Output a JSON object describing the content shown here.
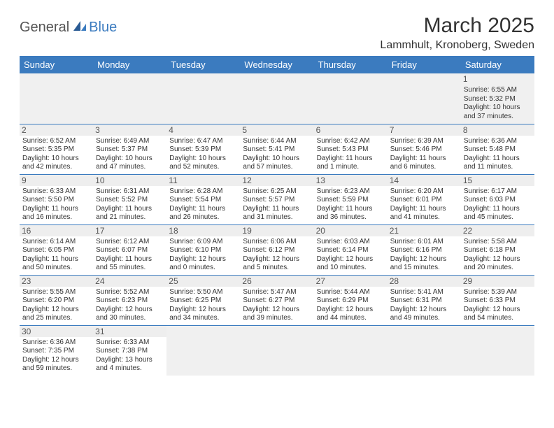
{
  "brand": {
    "part1": "General",
    "part2": "Blue"
  },
  "title": "March 2025",
  "location": "Lammhult, Kronoberg, Sweden",
  "colors": {
    "header_bg": "#3b7bbf",
    "header_fg": "#ffffff",
    "border": "#3b7bbf",
    "daynum_bg": "#eeeeee"
  },
  "day_headers": [
    "Sunday",
    "Monday",
    "Tuesday",
    "Wednesday",
    "Thursday",
    "Friday",
    "Saturday"
  ],
  "weeks": [
    [
      {
        "n": "",
        "sr": "",
        "ss": "",
        "dl": ""
      },
      {
        "n": "",
        "sr": "",
        "ss": "",
        "dl": ""
      },
      {
        "n": "",
        "sr": "",
        "ss": "",
        "dl": ""
      },
      {
        "n": "",
        "sr": "",
        "ss": "",
        "dl": ""
      },
      {
        "n": "",
        "sr": "",
        "ss": "",
        "dl": ""
      },
      {
        "n": "",
        "sr": "",
        "ss": "",
        "dl": ""
      },
      {
        "n": "1",
        "sr": "Sunrise: 6:55 AM",
        "ss": "Sunset: 5:32 PM",
        "dl": "Daylight: 10 hours and 37 minutes."
      }
    ],
    [
      {
        "n": "2",
        "sr": "Sunrise: 6:52 AM",
        "ss": "Sunset: 5:35 PM",
        "dl": "Daylight: 10 hours and 42 minutes."
      },
      {
        "n": "3",
        "sr": "Sunrise: 6:49 AM",
        "ss": "Sunset: 5:37 PM",
        "dl": "Daylight: 10 hours and 47 minutes."
      },
      {
        "n": "4",
        "sr": "Sunrise: 6:47 AM",
        "ss": "Sunset: 5:39 PM",
        "dl": "Daylight: 10 hours and 52 minutes."
      },
      {
        "n": "5",
        "sr": "Sunrise: 6:44 AM",
        "ss": "Sunset: 5:41 PM",
        "dl": "Daylight: 10 hours and 57 minutes."
      },
      {
        "n": "6",
        "sr": "Sunrise: 6:42 AM",
        "ss": "Sunset: 5:43 PM",
        "dl": "Daylight: 11 hours and 1 minute."
      },
      {
        "n": "7",
        "sr": "Sunrise: 6:39 AM",
        "ss": "Sunset: 5:46 PM",
        "dl": "Daylight: 11 hours and 6 minutes."
      },
      {
        "n": "8",
        "sr": "Sunrise: 6:36 AM",
        "ss": "Sunset: 5:48 PM",
        "dl": "Daylight: 11 hours and 11 minutes."
      }
    ],
    [
      {
        "n": "9",
        "sr": "Sunrise: 6:33 AM",
        "ss": "Sunset: 5:50 PM",
        "dl": "Daylight: 11 hours and 16 minutes."
      },
      {
        "n": "10",
        "sr": "Sunrise: 6:31 AM",
        "ss": "Sunset: 5:52 PM",
        "dl": "Daylight: 11 hours and 21 minutes."
      },
      {
        "n": "11",
        "sr": "Sunrise: 6:28 AM",
        "ss": "Sunset: 5:54 PM",
        "dl": "Daylight: 11 hours and 26 minutes."
      },
      {
        "n": "12",
        "sr": "Sunrise: 6:25 AM",
        "ss": "Sunset: 5:57 PM",
        "dl": "Daylight: 11 hours and 31 minutes."
      },
      {
        "n": "13",
        "sr": "Sunrise: 6:23 AM",
        "ss": "Sunset: 5:59 PM",
        "dl": "Daylight: 11 hours and 36 minutes."
      },
      {
        "n": "14",
        "sr": "Sunrise: 6:20 AM",
        "ss": "Sunset: 6:01 PM",
        "dl": "Daylight: 11 hours and 41 minutes."
      },
      {
        "n": "15",
        "sr": "Sunrise: 6:17 AM",
        "ss": "Sunset: 6:03 PM",
        "dl": "Daylight: 11 hours and 45 minutes."
      }
    ],
    [
      {
        "n": "16",
        "sr": "Sunrise: 6:14 AM",
        "ss": "Sunset: 6:05 PM",
        "dl": "Daylight: 11 hours and 50 minutes."
      },
      {
        "n": "17",
        "sr": "Sunrise: 6:12 AM",
        "ss": "Sunset: 6:07 PM",
        "dl": "Daylight: 11 hours and 55 minutes."
      },
      {
        "n": "18",
        "sr": "Sunrise: 6:09 AM",
        "ss": "Sunset: 6:10 PM",
        "dl": "Daylight: 12 hours and 0 minutes."
      },
      {
        "n": "19",
        "sr": "Sunrise: 6:06 AM",
        "ss": "Sunset: 6:12 PM",
        "dl": "Daylight: 12 hours and 5 minutes."
      },
      {
        "n": "20",
        "sr": "Sunrise: 6:03 AM",
        "ss": "Sunset: 6:14 PM",
        "dl": "Daylight: 12 hours and 10 minutes."
      },
      {
        "n": "21",
        "sr": "Sunrise: 6:01 AM",
        "ss": "Sunset: 6:16 PM",
        "dl": "Daylight: 12 hours and 15 minutes."
      },
      {
        "n": "22",
        "sr": "Sunrise: 5:58 AM",
        "ss": "Sunset: 6:18 PM",
        "dl": "Daylight: 12 hours and 20 minutes."
      }
    ],
    [
      {
        "n": "23",
        "sr": "Sunrise: 5:55 AM",
        "ss": "Sunset: 6:20 PM",
        "dl": "Daylight: 12 hours and 25 minutes."
      },
      {
        "n": "24",
        "sr": "Sunrise: 5:52 AM",
        "ss": "Sunset: 6:23 PM",
        "dl": "Daylight: 12 hours and 30 minutes."
      },
      {
        "n": "25",
        "sr": "Sunrise: 5:50 AM",
        "ss": "Sunset: 6:25 PM",
        "dl": "Daylight: 12 hours and 34 minutes."
      },
      {
        "n": "26",
        "sr": "Sunrise: 5:47 AM",
        "ss": "Sunset: 6:27 PM",
        "dl": "Daylight: 12 hours and 39 minutes."
      },
      {
        "n": "27",
        "sr": "Sunrise: 5:44 AM",
        "ss": "Sunset: 6:29 PM",
        "dl": "Daylight: 12 hours and 44 minutes."
      },
      {
        "n": "28",
        "sr": "Sunrise: 5:41 AM",
        "ss": "Sunset: 6:31 PM",
        "dl": "Daylight: 12 hours and 49 minutes."
      },
      {
        "n": "29",
        "sr": "Sunrise: 5:39 AM",
        "ss": "Sunset: 6:33 PM",
        "dl": "Daylight: 12 hours and 54 minutes."
      }
    ],
    [
      {
        "n": "30",
        "sr": "Sunrise: 6:36 AM",
        "ss": "Sunset: 7:35 PM",
        "dl": "Daylight: 12 hours and 59 minutes."
      },
      {
        "n": "31",
        "sr": "Sunrise: 6:33 AM",
        "ss": "Sunset: 7:38 PM",
        "dl": "Daylight: 13 hours and 4 minutes."
      },
      {
        "n": "",
        "sr": "",
        "ss": "",
        "dl": ""
      },
      {
        "n": "",
        "sr": "",
        "ss": "",
        "dl": ""
      },
      {
        "n": "",
        "sr": "",
        "ss": "",
        "dl": ""
      },
      {
        "n": "",
        "sr": "",
        "ss": "",
        "dl": ""
      },
      {
        "n": "",
        "sr": "",
        "ss": "",
        "dl": ""
      }
    ]
  ]
}
